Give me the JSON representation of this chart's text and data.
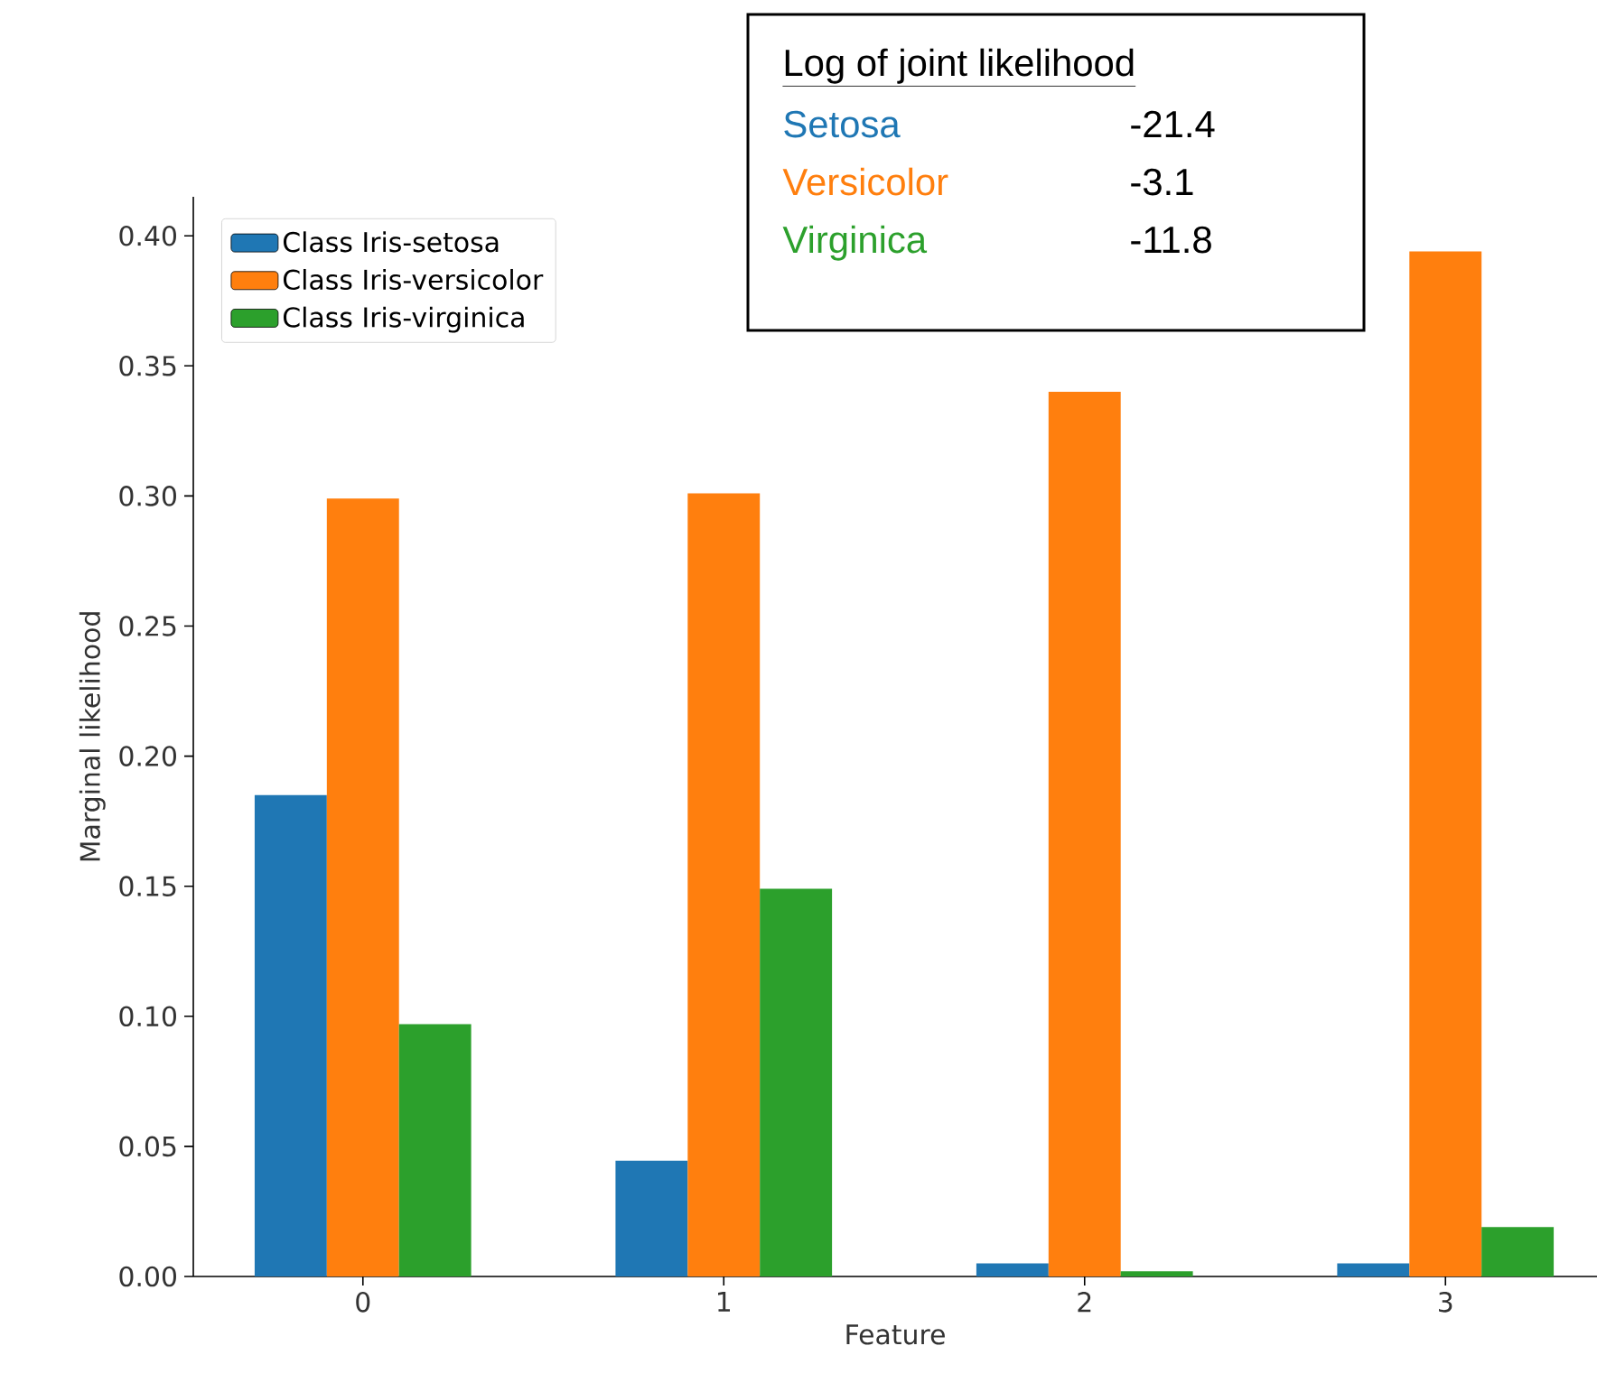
{
  "chart_data": {
    "type": "bar",
    "xlabel": "Feature",
    "ylabel": "Marginal likelihood",
    "categories": [
      "0",
      "1",
      "2",
      "3"
    ],
    "series": [
      {
        "name": "Class Iris-setosa",
        "color": "#1f77b4",
        "values": [
          0.185,
          0.0445,
          0.005,
          0.005
        ]
      },
      {
        "name": "Class Iris-versicolor",
        "color": "#ff7f0e",
        "values": [
          0.299,
          0.301,
          0.34,
          0.394
        ]
      },
      {
        "name": "Class Iris-virginica",
        "color": "#2ca02c",
        "values": [
          0.097,
          0.149,
          0.002,
          0.019
        ]
      }
    ],
    "ylim": [
      0,
      0.415
    ],
    "yticks": [
      {
        "value": 0,
        "label": "0.00"
      },
      {
        "value": 0.05,
        "label": "0.05"
      },
      {
        "value": 0.1,
        "label": "0.10"
      },
      {
        "value": 0.15,
        "label": "0.15"
      },
      {
        "value": 0.2,
        "label": "0.20"
      },
      {
        "value": 0.25,
        "label": "0.25"
      },
      {
        "value": 0.3,
        "label": "0.30"
      },
      {
        "value": 0.35,
        "label": "0.35"
      },
      {
        "value": 0.4,
        "label": "0.40"
      }
    ],
    "legend": "top left",
    "grid": false,
    "annotations": [
      "Log of joint likelihood",
      "Setosa",
      "-21.4",
      "Versicolor",
      "-3.1",
      "Virginica",
      "-11.8"
    ]
  }
}
